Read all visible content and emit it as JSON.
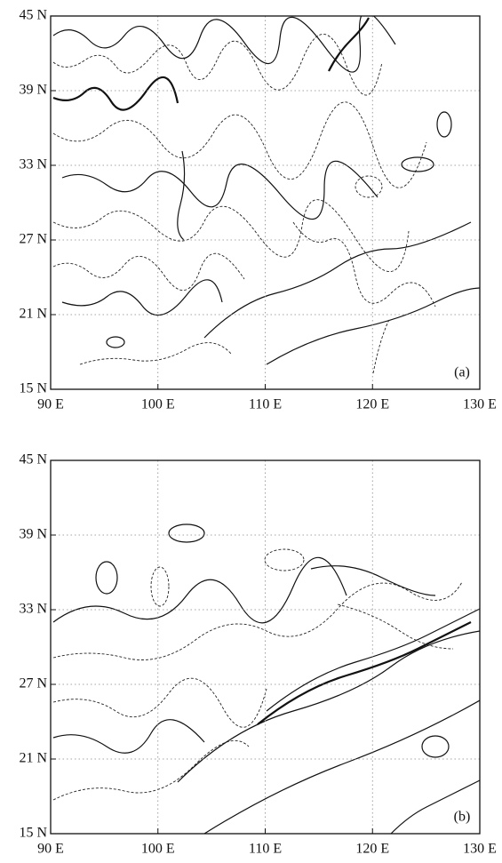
{
  "chart_data": [
    {
      "type": "contour",
      "label": "(a)",
      "xlim": [
        90,
        130
      ],
      "ylim": [
        15,
        45
      ],
      "grid": true,
      "xticks": [
        {
          "value": 90,
          "label": "90 E"
        },
        {
          "value": 100,
          "label": "100 E"
        },
        {
          "value": 110,
          "label": "110 E"
        },
        {
          "value": 120,
          "label": "120 E"
        },
        {
          "value": 130,
          "label": "130 E"
        }
      ],
      "yticks": [
        {
          "value": 15,
          "label": "15 N"
        },
        {
          "value": 21,
          "label": "21 N"
        },
        {
          "value": 27,
          "label": "27 N"
        },
        {
          "value": 33,
          "label": "33 N"
        },
        {
          "value": 39,
          "label": "39 N"
        },
        {
          "value": 45,
          "label": "45 N"
        }
      ]
    },
    {
      "type": "contour",
      "label": "(b)",
      "xlim": [
        90,
        130
      ],
      "ylim": [
        15,
        45
      ],
      "grid": true,
      "xticks": [
        {
          "value": 90,
          "label": "90 E"
        },
        {
          "value": 100,
          "label": "100 E"
        },
        {
          "value": 110,
          "label": "110 E"
        },
        {
          "value": 120,
          "label": "120 E"
        },
        {
          "value": 130,
          "label": "130 E"
        }
      ],
      "yticks": [
        {
          "value": 15,
          "label": "15 N"
        },
        {
          "value": 21,
          "label": "21 N"
        },
        {
          "value": 27,
          "label": "27 N"
        },
        {
          "value": 33,
          "label": "33 N"
        },
        {
          "value": 39,
          "label": "39 N"
        },
        {
          "value": 45,
          "label": "45 N"
        }
      ]
    }
  ]
}
